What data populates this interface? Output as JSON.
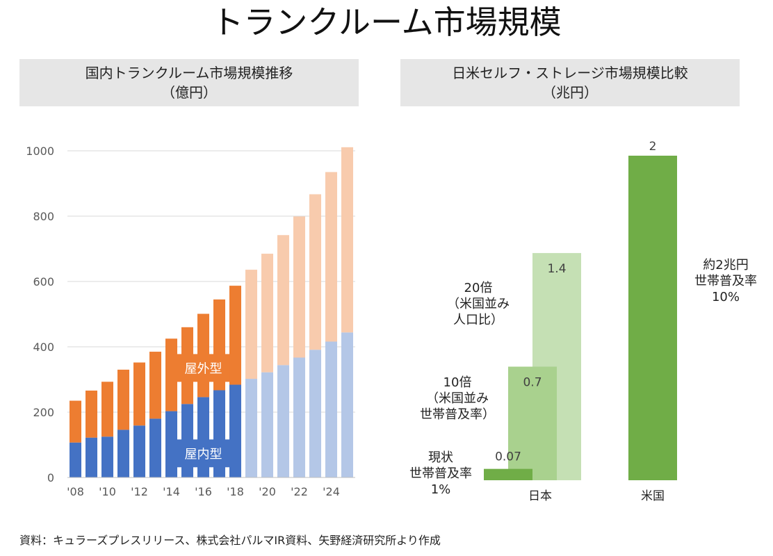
{
  "title": "トランクルーム市場規模",
  "left_panel": {
    "header_line1": "国内トランクルーム市場規模推移",
    "header_line2": "（億円）"
  },
  "right_panel": {
    "header_line1": "日米セルフ・ストレージ市場規模比較",
    "header_line2": "（兆円）"
  },
  "source": "資料：キュラーズプレスリリース、株式会社パルマIR資料、矢野経済研究所より作成",
  "chart_data": [
    {
      "type": "bar",
      "stacked": true,
      "years": [
        2008,
        2009,
        2010,
        2011,
        2012,
        2013,
        2014,
        2015,
        2016,
        2017,
        2018,
        2019,
        2020,
        2021,
        2022,
        2023,
        2024,
        2025
      ],
      "x_tick_labels": [
        "'08",
        "'10",
        "'12",
        "'14",
        "'16",
        "'18",
        "'20",
        "'22",
        "'24"
      ],
      "series": [
        {
          "name": "屋内型",
          "values": [
            107,
            122,
            125,
            146,
            159,
            180,
            203,
            225,
            246,
            267,
            284,
            302,
            322,
            344,
            367,
            391,
            416,
            444
          ]
        },
        {
          "name": "屋外型",
          "values": [
            128,
            144,
            168,
            184,
            193,
            205,
            222,
            235,
            255,
            278,
            303,
            334,
            363,
            398,
            432,
            476,
            519,
            567
          ]
        }
      ],
      "forecast_from_index": 11,
      "ylim": [
        0,
        1000
      ],
      "y_ticks": [
        "0",
        "200",
        "400",
        "600",
        "800",
        "1000"
      ],
      "grid": true,
      "colors": {
        "indoor": "#4472c4",
        "outdoor": "#ed7d31",
        "indoor_forecast": "#b4c7e7",
        "outdoor_forecast": "#f8cbad"
      }
    },
    {
      "type": "bar",
      "categories": [
        "日本",
        "米国"
      ],
      "ylim": [
        0,
        2
      ],
      "bars": [
        {
          "category": "日本",
          "value": 1.4,
          "label": "1.4",
          "color": "#c5e0b4",
          "annotation": [
            "20倍",
            "（米国並み",
            "人口比）"
          ]
        },
        {
          "category": "日本",
          "value": 0.7,
          "label": "0.7",
          "color": "#a9d18e",
          "annotation": [
            "10倍",
            "（米国並み",
            "世帯普及率）"
          ]
        },
        {
          "category": "日本",
          "value": 0.07,
          "label": "0.07",
          "color": "#70ad47",
          "annotation": [
            "現状",
            "世帯普及率",
            "1%"
          ]
        },
        {
          "category": "米国",
          "value": 2,
          "label": "2",
          "color": "#70ad47",
          "annotation": [
            "約2兆円",
            "世帯普及率",
            "10%"
          ]
        }
      ]
    }
  ]
}
